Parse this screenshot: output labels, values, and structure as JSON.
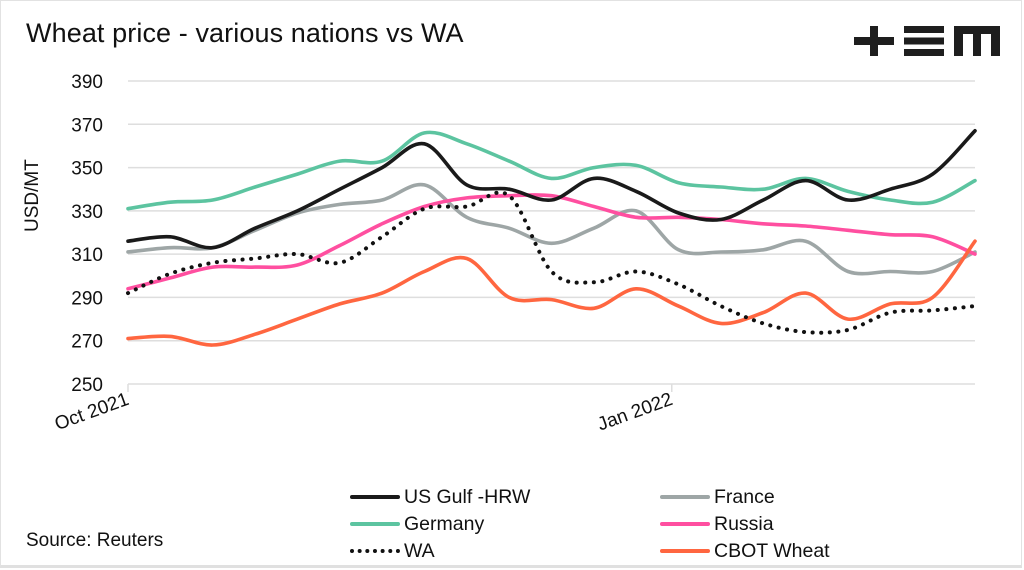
{
  "header": {
    "title": "Wheat price - various nations vs WA",
    "logo": "+EM"
  },
  "footer": {
    "source": "Source: Reuters"
  },
  "chart_data": {
    "type": "line",
    "title": "Wheat price - various nations vs WA",
    "xlabel": "",
    "ylabel": "USD/MT",
    "ylim": [
      250,
      390
    ],
    "yticks": [
      250,
      270,
      290,
      310,
      330,
      350,
      370,
      390
    ],
    "ytick_labels": [
      "250",
      "270",
      "290",
      "310",
      "330",
      "350",
      "370",
      "390"
    ],
    "xtick_labels": [
      {
        "label": "Oct 2021",
        "index": 0
      },
      {
        "label": "Jan 2022",
        "index": 12.84
      }
    ],
    "grid": true,
    "legend_position": "bottom",
    "x_count": 21,
    "series": [
      {
        "name": "US Gulf -HRW",
        "color": "#1a1a1a",
        "style": "solid",
        "values": [
          316,
          318,
          313,
          322,
          330,
          340,
          350,
          361,
          342,
          340,
          335,
          345,
          339,
          329,
          326,
          335,
          344,
          335,
          340,
          347,
          367
        ]
      },
      {
        "name": "France",
        "color": "#9ea6a6",
        "style": "solid",
        "values": [
          311,
          313,
          313,
          321,
          329,
          333,
          335,
          342,
          327,
          322,
          315,
          322,
          330,
          312,
          311,
          312,
          316,
          302,
          302,
          302,
          311
        ]
      },
      {
        "name": "Germany",
        "color": "#5cc4a0",
        "style": "solid",
        "values": [
          331,
          334,
          335,
          341,
          347,
          353,
          353,
          366,
          361,
          353,
          345,
          350,
          351,
          343,
          341,
          340,
          345,
          339,
          335,
          334,
          344
        ]
      },
      {
        "name": "Russia",
        "color": "#ff4fa0",
        "style": "solid",
        "values": [
          294,
          299,
          304,
          304,
          305,
          314,
          324,
          332,
          336,
          337,
          337,
          332,
          327,
          327,
          326,
          324,
          323,
          321,
          319,
          318,
          310
        ]
      },
      {
        "name": "WA",
        "color": "#111111",
        "style": "dotted",
        "values": [
          292,
          301,
          306,
          308,
          310,
          306,
          318,
          331,
          332,
          337,
          302,
          297,
          302,
          296,
          286,
          278,
          274,
          275,
          283,
          284,
          286
        ]
      },
      {
        "name": "CBOT Wheat",
        "color": "#ff6640",
        "style": "solid",
        "values": [
          271,
          272,
          268,
          273,
          280,
          287,
          292,
          302,
          308,
          290,
          289,
          285,
          294,
          286,
          278,
          283,
          292,
          280,
          287,
          290,
          316
        ]
      }
    ]
  },
  "legend": [
    {
      "label": "US Gulf -HRW",
      "color": "#1a1a1a",
      "style": "solid"
    },
    {
      "label": "France",
      "color": "#9ea6a6",
      "style": "solid"
    },
    {
      "label": "Germany",
      "color": "#5cc4a0",
      "style": "solid"
    },
    {
      "label": "Russia",
      "color": "#ff4fa0",
      "style": "solid"
    },
    {
      "label": "WA",
      "color": "#111111",
      "style": "dotted"
    },
    {
      "label": "CBOT Wheat",
      "color": "#ff6640",
      "style": "solid"
    }
  ]
}
